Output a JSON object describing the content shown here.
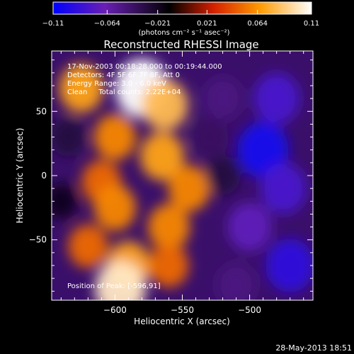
{
  "chart_data": {
    "type": "heatmap",
    "title": "Reconstructed RHESSI Image",
    "xlabel": "Heliocentric X (arcsec)",
    "ylabel": "Heliocentric Y (arcsec)",
    "xlim": [
      -647,
      -453
    ],
    "ylim": [
      -97,
      97
    ],
    "x_ticks": [
      -600,
      -550,
      -500
    ],
    "x_tick_labels": [
      "−600",
      "−550",
      "−500"
    ],
    "y_ticks": [
      50,
      0,
      -50
    ],
    "y_tick_labels": [
      "50",
      "0",
      "−50"
    ],
    "colorbar": {
      "min": -0.11,
      "max": 0.11,
      "ticks": [
        -0.11,
        -0.064,
        -0.021,
        0.021,
        0.064,
        0.11
      ],
      "tick_labels": [
        "−0.11",
        "−0.064",
        "−0.021",
        "0.021",
        "0.064",
        "0.11"
      ],
      "unit_label": "(photons cm⁻² s⁻¹ asec⁻²)",
      "colormap": [
        "#0000ff",
        "#6a1fb4",
        "#000000",
        "#d42000",
        "#ff9a00",
        "#ffffff"
      ]
    },
    "sources": [
      {
        "x": -580,
        "y": 68,
        "value": 0.11
      },
      {
        "x": -625,
        "y": 68,
        "value": 0.07
      },
      {
        "x": -563,
        "y": 55,
        "value": 0.08
      },
      {
        "x": -600,
        "y": 30,
        "value": 0.06
      },
      {
        "x": -565,
        "y": 15,
        "value": 0.07
      },
      {
        "x": -610,
        "y": -5,
        "value": 0.05
      },
      {
        "x": -600,
        "y": -25,
        "value": 0.06
      },
      {
        "x": -545,
        "y": -10,
        "value": 0.06
      },
      {
        "x": -560,
        "y": -40,
        "value": 0.06
      },
      {
        "x": -620,
        "y": -55,
        "value": 0.05
      },
      {
        "x": -590,
        "y": -70,
        "value": 0.07
      },
      {
        "x": -596,
        "y": -88,
        "value": 0.1
      },
      {
        "x": -560,
        "y": -70,
        "value": 0.05
      },
      {
        "x": -635,
        "y": 30,
        "value": -0.03
      },
      {
        "x": -520,
        "y": 60,
        "value": -0.05
      },
      {
        "x": -480,
        "y": 60,
        "value": -0.08
      },
      {
        "x": -490,
        "y": 20,
        "value": -0.1
      },
      {
        "x": -475,
        "y": -10,
        "value": -0.08
      },
      {
        "x": -500,
        "y": -40,
        "value": -0.07
      },
      {
        "x": -470,
        "y": -70,
        "value": -0.09
      },
      {
        "x": -510,
        "y": -85,
        "value": -0.05
      },
      {
        "x": -520,
        "y": 0,
        "value": -0.03
      },
      {
        "x": -640,
        "y": -20,
        "value": -0.02
      },
      {
        "x": -530,
        "y": 30,
        "value": -0.04
      }
    ],
    "annotations": {
      "time_range": "17-Nov-2003 00:18:28.000 to 00:19:44.000",
      "detectors": "Detectors: 4F 5F 6F 7F 8F, Att 0",
      "energy_range": "Energy Range: 3.0 - 6.0 keV",
      "clean_counts": "Clean     Total counts: 2.22E+04",
      "peak_position": "Position of Peak: [-596,91]"
    }
  },
  "footer": {
    "timestamp": "28-May-2013 18:51"
  }
}
